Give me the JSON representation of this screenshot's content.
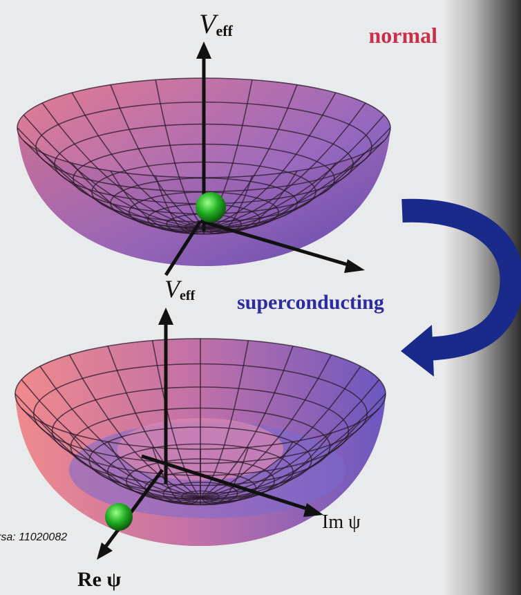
{
  "top": {
    "axis_label": "V",
    "axis_label_subscript": "eff",
    "state": "normal"
  },
  "bottom": {
    "axis_label": "V",
    "axis_label_subscript": "eff",
    "state": "superconducting",
    "im_axis": "Im ψ",
    "re_axis": "Re ψ"
  },
  "watermark": "rsa: 11020082"
}
